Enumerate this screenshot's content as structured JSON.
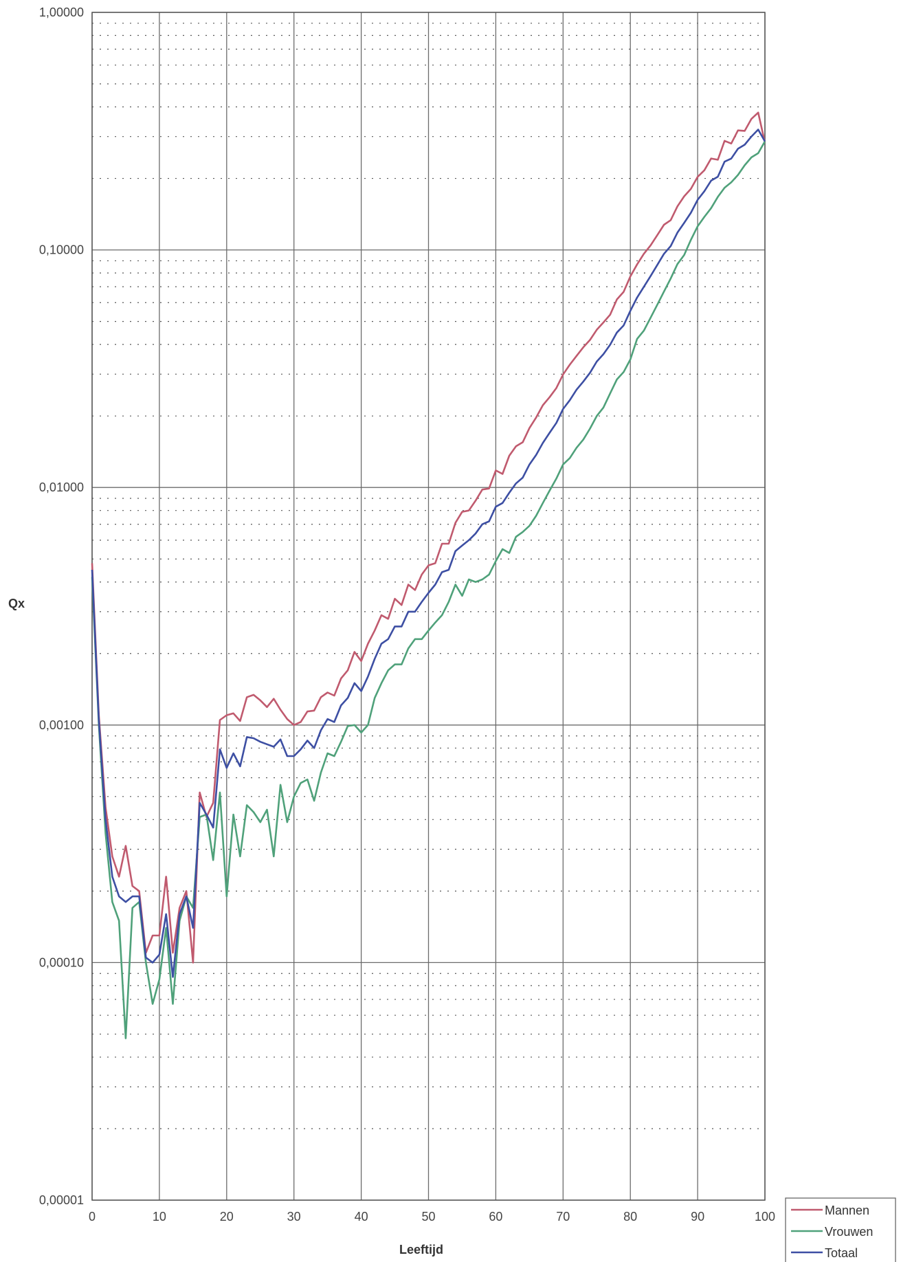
{
  "chart_data": {
    "type": "line",
    "title": "",
    "xlabel": "Leeftijd",
    "ylabel": "Qx",
    "xlim": [
      0,
      100
    ],
    "ylim": [
      1e-05,
      1
    ],
    "yscale": "log",
    "x_ticks": [
      0,
      10,
      20,
      30,
      40,
      50,
      60,
      70,
      80,
      90,
      100
    ],
    "x_tick_labels": [
      "0",
      "10",
      "20",
      "30",
      "40",
      "50",
      "60",
      "70",
      "80",
      "90",
      "100"
    ],
    "y_ticks": [
      1e-05,
      0.0001,
      0.001,
      0.01,
      0.1,
      1
    ],
    "y_tick_labels": [
      "0,00001",
      "0,00010",
      "0,00100",
      "0,01000",
      "0,10000",
      "1,00000"
    ],
    "grid": true,
    "legend_position": "bottom-right",
    "series": [
      {
        "name": "Mannen",
        "color": "#c05a6e",
        "x": [
          0,
          1,
          2,
          3,
          4,
          5,
          6,
          7,
          8,
          9,
          10,
          11,
          12,
          13,
          14,
          15,
          16,
          17,
          18,
          19,
          20,
          21,
          22,
          23,
          24,
          25,
          26,
          27,
          28,
          29,
          30,
          31,
          32,
          33,
          34,
          35,
          36,
          37,
          38,
          39,
          40,
          41,
          42,
          43,
          44,
          45,
          46,
          47,
          48,
          49,
          50,
          51,
          52,
          53,
          54,
          55,
          56,
          57,
          58,
          59,
          60,
          61,
          62,
          63,
          64,
          65,
          66,
          67,
          68,
          69,
          70,
          71,
          72,
          73,
          74,
          75,
          76,
          77,
          78,
          79,
          80,
          81,
          82,
          83,
          84,
          85,
          86,
          87,
          88,
          89,
          90,
          91,
          92,
          93,
          94,
          95,
          96,
          97,
          98,
          99,
          100
        ],
        "values": [
          0.0048,
          0.0011,
          0.00045,
          0.00028,
          0.00023,
          0.00031,
          0.00021,
          0.0002,
          0.00011,
          0.00013,
          0.00013,
          0.00023,
          0.00011,
          0.00017,
          0.0002,
          0.0001,
          0.00052,
          0.00041,
          0.00047,
          0.00105,
          0.0011,
          0.00112,
          0.00104,
          0.00131,
          0.00134,
          0.00127,
          0.00119,
          0.00129,
          0.00116,
          0.00106,
          0.001,
          0.00103,
          0.00114,
          0.00115,
          0.00131,
          0.00137,
          0.00133,
          0.00157,
          0.0017,
          0.00203,
          0.00186,
          0.0022,
          0.0025,
          0.0029,
          0.0028,
          0.0034,
          0.0032,
          0.0039,
          0.0037,
          0.0043,
          0.0047,
          0.0048,
          0.0058,
          0.0058,
          0.0071,
          0.0079,
          0.008,
          0.0088,
          0.0098,
          0.0099,
          0.0118,
          0.0114,
          0.0136,
          0.0149,
          0.0155,
          0.0178,
          0.0197,
          0.0222,
          0.024,
          0.0262,
          0.0299,
          0.0329,
          0.0358,
          0.0389,
          0.0418,
          0.0461,
          0.0495,
          0.0534,
          0.0619,
          0.0666,
          0.0774,
          0.0869,
          0.0963,
          0.1044,
          0.1154,
          0.1276,
          0.1334,
          0.1526,
          0.1681,
          0.1807,
          0.2031,
          0.2164,
          0.2425,
          0.2397,
          0.2878,
          0.2805,
          0.3186,
          0.3171,
          0.3563,
          0.3786,
          0.2829
        ]
      },
      {
        "name": "Vrouwen",
        "color": "#4fa17a",
        "x": [
          0,
          1,
          2,
          3,
          4,
          5,
          6,
          7,
          8,
          9,
          10,
          11,
          12,
          13,
          14,
          15,
          16,
          17,
          18,
          19,
          20,
          21,
          22,
          23,
          24,
          25,
          26,
          27,
          28,
          29,
          30,
          31,
          32,
          33,
          34,
          35,
          36,
          37,
          38,
          39,
          40,
          41,
          42,
          43,
          44,
          45,
          46,
          47,
          48,
          49,
          50,
          51,
          52,
          53,
          54,
          55,
          56,
          57,
          58,
          59,
          60,
          61,
          62,
          63,
          64,
          65,
          66,
          67,
          68,
          69,
          70,
          71,
          72,
          73,
          74,
          75,
          76,
          77,
          78,
          79,
          80,
          81,
          82,
          83,
          84,
          85,
          86,
          87,
          88,
          89,
          90,
          91,
          92,
          93,
          94,
          95,
          96,
          97,
          98,
          99,
          100
        ],
        "values": [
          0.0042,
          0.001,
          0.00035,
          0.00018,
          0.00015,
          4.8e-05,
          0.00017,
          0.00018,
          0.0001,
          6.7e-05,
          8.5e-05,
          0.00014,
          6.7e-05,
          0.00015,
          0.00019,
          0.00017,
          0.00041,
          0.00042,
          0.00027,
          0.00052,
          0.00019,
          0.00042,
          0.00028,
          0.00046,
          0.00043,
          0.00039,
          0.00044,
          0.00028,
          0.00056,
          0.00039,
          0.0005,
          0.00057,
          0.00059,
          0.00048,
          0.00063,
          0.00076,
          0.00074,
          0.00085,
          0.00099,
          0.001,
          0.00093,
          0.001,
          0.0013,
          0.0015,
          0.0017,
          0.0018,
          0.0018,
          0.0021,
          0.0023,
          0.0023,
          0.0025,
          0.0027,
          0.0029,
          0.0033,
          0.0039,
          0.0035,
          0.0041,
          0.004,
          0.0041,
          0.0043,
          0.0049,
          0.0055,
          0.0053,
          0.0062,
          0.0065,
          0.0069,
          0.0076,
          0.0086,
          0.0097,
          0.0109,
          0.0125,
          0.0133,
          0.0147,
          0.0159,
          0.0177,
          0.02,
          0.0217,
          0.0249,
          0.0285,
          0.0306,
          0.0346,
          0.0422,
          0.0457,
          0.0518,
          0.0588,
          0.0668,
          0.0758,
          0.0872,
          0.0952,
          0.1103,
          0.1258,
          0.1378,
          0.1499,
          0.1672,
          0.1827,
          0.1926,
          0.2068,
          0.2272,
          0.2453,
          0.2553,
          0.2864
        ]
      },
      {
        "name": "Totaal",
        "color": "#3d4fa3",
        "x": [
          0,
          1,
          2,
          3,
          4,
          5,
          6,
          7,
          8,
          9,
          10,
          11,
          12,
          13,
          14,
          15,
          16,
          17,
          18,
          19,
          20,
          21,
          22,
          23,
          24,
          25,
          26,
          27,
          28,
          29,
          30,
          31,
          32,
          33,
          34,
          35,
          36,
          37,
          38,
          39,
          40,
          41,
          42,
          43,
          44,
          45,
          46,
          47,
          48,
          49,
          50,
          51,
          52,
          53,
          54,
          55,
          56,
          57,
          58,
          59,
          60,
          61,
          62,
          63,
          64,
          65,
          66,
          67,
          68,
          69,
          70,
          71,
          72,
          73,
          74,
          75,
          76,
          77,
          78,
          79,
          80,
          81,
          82,
          83,
          84,
          85,
          86,
          87,
          88,
          89,
          90,
          91,
          92,
          93,
          94,
          95,
          96,
          97,
          98,
          99,
          100
        ],
        "values": [
          0.0045,
          0.00105,
          0.0004,
          0.00023,
          0.00019,
          0.00018,
          0.00019,
          0.00019,
          0.000105,
          0.0001,
          0.000108,
          0.00016,
          8.7e-05,
          0.00016,
          0.00019,
          0.00014,
          0.00047,
          0.00042,
          0.00037,
          0.00079,
          0.00066,
          0.00076,
          0.00067,
          0.00089,
          0.00088,
          0.00085,
          0.00083,
          0.00081,
          0.00087,
          0.00074,
          0.00074,
          0.00079,
          0.00086,
          0.0008,
          0.00095,
          0.00106,
          0.00103,
          0.00121,
          0.0013,
          0.0015,
          0.00139,
          0.0016,
          0.0019,
          0.0022,
          0.0023,
          0.0026,
          0.0026,
          0.003,
          0.003,
          0.0033,
          0.0036,
          0.0039,
          0.0044,
          0.0045,
          0.0054,
          0.0057,
          0.006,
          0.0064,
          0.007,
          0.0072,
          0.0083,
          0.0086,
          0.0095,
          0.0104,
          0.011,
          0.0125,
          0.0137,
          0.0154,
          0.017,
          0.0187,
          0.0214,
          0.0233,
          0.0258,
          0.0279,
          0.0304,
          0.0339,
          0.0364,
          0.0399,
          0.0449,
          0.0481,
          0.0554,
          0.063,
          0.0699,
          0.0776,
          0.0865,
          0.0963,
          0.1038,
          0.1183,
          0.13,
          0.1434,
          0.1625,
          0.1766,
          0.1957,
          0.2033,
          0.2353,
          0.2424,
          0.2667,
          0.2774,
          0.3003,
          0.3212,
          0.2863
        ]
      }
    ]
  }
}
